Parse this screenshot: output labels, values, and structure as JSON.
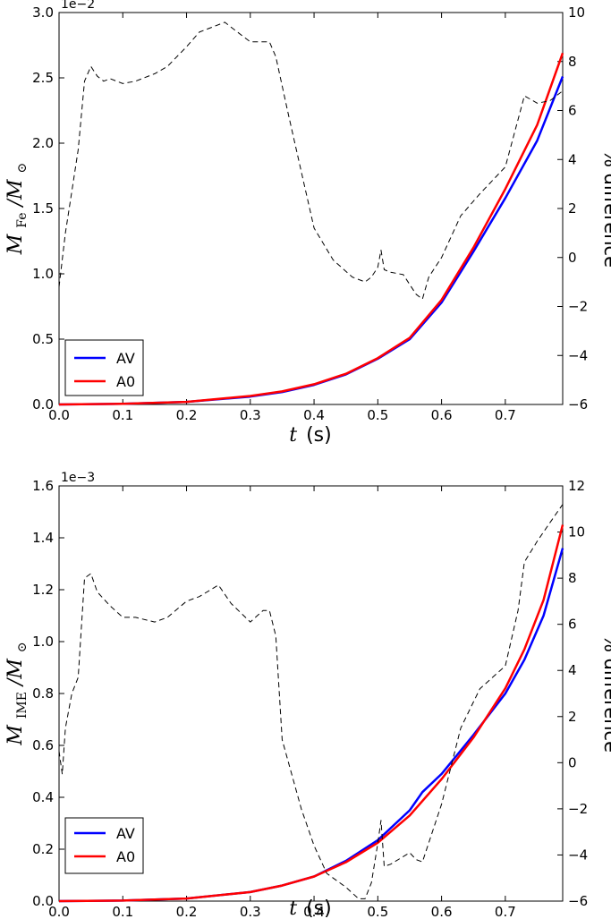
{
  "chart_data": [
    {
      "type": "line",
      "id": "top",
      "xlabel_var": "t",
      "xlabel_unit": "(s)",
      "ylabel_main": "M",
      "ylabel_sub": "Fe",
      "ylabel_tail": "/M",
      "ylabel_sun": "⊙",
      "ylabel_right": "% difference",
      "exponent_label": "1e−2",
      "xlim": [
        0.0,
        0.79
      ],
      "ylim": [
        0.0,
        3.0
      ],
      "ylim_right": [
        -6,
        10
      ],
      "x_ticks": [
        0.0,
        0.1,
        0.2,
        0.3,
        0.4,
        0.5,
        0.6,
        0.7
      ],
      "x_tick_labels": [
        "0.0",
        "0.1",
        "0.2",
        "0.3",
        "0.4",
        "0.5",
        "0.6",
        "0.7"
      ],
      "y_ticks": [
        0.0,
        0.5,
        1.0,
        1.5,
        2.0,
        2.5,
        3.0
      ],
      "y_tick_labels": [
        "0.0",
        "0.5",
        "1.0",
        "1.5",
        "2.0",
        "2.5",
        "3.0"
      ],
      "y_right_ticks": [
        -6,
        -4,
        -2,
        0,
        2,
        4,
        6,
        8,
        10
      ],
      "y_right_tick_labels": [
        "−6",
        "−4",
        "−2",
        "0",
        "2",
        "4",
        "6",
        "8",
        "10"
      ],
      "legend": {
        "placement": "lower-left",
        "entries": [
          "AV",
          "A0"
        ]
      },
      "series": [
        {
          "name": "AV",
          "color": "#0000ff",
          "axis": "left",
          "x": [
            0.0,
            0.1,
            0.2,
            0.3,
            0.35,
            0.4,
            0.45,
            0.5,
            0.55,
            0.6,
            0.65,
            0.7,
            0.75,
            0.79
          ],
          "y": [
            0.0,
            0.005,
            0.02,
            0.06,
            0.095,
            0.15,
            0.23,
            0.35,
            0.5,
            0.78,
            1.17,
            1.58,
            2.02,
            2.51
          ]
        },
        {
          "name": "A0",
          "color": "#ff0000",
          "axis": "left",
          "x": [
            0.0,
            0.1,
            0.2,
            0.3,
            0.35,
            0.4,
            0.45,
            0.5,
            0.55,
            0.6,
            0.65,
            0.7,
            0.75,
            0.79
          ],
          "y": [
            0.0,
            0.005,
            0.02,
            0.065,
            0.1,
            0.155,
            0.235,
            0.355,
            0.51,
            0.8,
            1.2,
            1.65,
            2.14,
            2.69
          ]
        },
        {
          "name": "% difference",
          "color": "#000000",
          "axis": "right",
          "dashed": true,
          "x": [
            0.0,
            0.01,
            0.02,
            0.03,
            0.04,
            0.05,
            0.06,
            0.07,
            0.08,
            0.1,
            0.12,
            0.15,
            0.17,
            0.2,
            0.22,
            0.24,
            0.26,
            0.28,
            0.3,
            0.33,
            0.34,
            0.36,
            0.38,
            0.4,
            0.43,
            0.46,
            0.48,
            0.49,
            0.5,
            0.505,
            0.51,
            0.52,
            0.54,
            0.56,
            0.57,
            0.58,
            0.6,
            0.63,
            0.66,
            0.7,
            0.73,
            0.75,
            0.77,
            0.79
          ],
          "y": [
            -1.2,
            1.0,
            2.7,
            4.4,
            7.2,
            7.8,
            7.4,
            7.2,
            7.3,
            7.1,
            7.2,
            7.5,
            7.8,
            8.6,
            9.2,
            9.4,
            9.6,
            9.2,
            8.8,
            8.8,
            8.2,
            5.8,
            3.5,
            1.2,
            -0.1,
            -0.8,
            -1.0,
            -0.8,
            -0.4,
            0.3,
            -0.5,
            -0.6,
            -0.7,
            -1.5,
            -1.7,
            -0.8,
            0.0,
            1.7,
            2.6,
            3.7,
            6.6,
            6.3,
            6.4,
            6.8
          ]
        }
      ]
    },
    {
      "type": "line",
      "id": "bottom",
      "xlabel_var": "t",
      "xlabel_unit": "(s)",
      "ylabel_main": "M",
      "ylabel_sub": "IME",
      "ylabel_tail": "/M",
      "ylabel_sun": "⊙",
      "ylabel_right": "% difference",
      "exponent_label": "1e−3",
      "xlim": [
        0.0,
        0.79
      ],
      "ylim": [
        0.0,
        1.6
      ],
      "ylim_right": [
        -6,
        12
      ],
      "x_ticks": [
        0.0,
        0.1,
        0.2,
        0.3,
        0.4,
        0.5,
        0.6,
        0.7
      ],
      "x_tick_labels": [
        "0.0",
        "0.1",
        "0.2",
        "0.3",
        "0.4",
        "0.5",
        "0.6",
        "0.7"
      ],
      "y_ticks": [
        0.0,
        0.2,
        0.4,
        0.6,
        0.8,
        1.0,
        1.2,
        1.4,
        1.6
      ],
      "y_tick_labels": [
        "0.0",
        "0.2",
        "0.4",
        "0.6",
        "0.8",
        "1.0",
        "1.2",
        "1.4",
        "1.6"
      ],
      "y_right_ticks": [
        -6,
        -4,
        -2,
        0,
        2,
        4,
        6,
        8,
        10,
        12
      ],
      "y_right_tick_labels": [
        "−6",
        "−4",
        "−2",
        "0",
        "2",
        "4",
        "6",
        "8",
        "10",
        "12"
      ],
      "legend": {
        "placement": "lower-left",
        "entries": [
          "AV",
          "A0"
        ]
      },
      "series": [
        {
          "name": "AV",
          "color": "#0000ff",
          "axis": "left",
          "x": [
            0.0,
            0.1,
            0.2,
            0.3,
            0.35,
            0.4,
            0.45,
            0.5,
            0.55,
            0.57,
            0.6,
            0.65,
            0.7,
            0.73,
            0.76,
            0.79
          ],
          "y": [
            0.0,
            0.002,
            0.01,
            0.035,
            0.06,
            0.095,
            0.155,
            0.235,
            0.35,
            0.42,
            0.49,
            0.64,
            0.8,
            0.93,
            1.1,
            1.36
          ]
        },
        {
          "name": "A0",
          "color": "#ff0000",
          "axis": "left",
          "x": [
            0.0,
            0.1,
            0.2,
            0.3,
            0.35,
            0.4,
            0.45,
            0.5,
            0.55,
            0.6,
            0.65,
            0.7,
            0.73,
            0.76,
            0.79
          ],
          "y": [
            0.0,
            0.002,
            0.01,
            0.035,
            0.06,
            0.095,
            0.15,
            0.225,
            0.33,
            0.47,
            0.63,
            0.82,
            0.97,
            1.16,
            1.45
          ]
        },
        {
          "name": "% difference",
          "color": "#000000",
          "axis": "right",
          "dashed": true,
          "x": [
            0.0,
            0.005,
            0.01,
            0.02,
            0.03,
            0.04,
            0.05,
            0.06,
            0.08,
            0.1,
            0.12,
            0.15,
            0.17,
            0.2,
            0.22,
            0.25,
            0.27,
            0.3,
            0.32,
            0.33,
            0.34,
            0.35,
            0.38,
            0.4,
            0.42,
            0.45,
            0.47,
            0.48,
            0.49,
            0.5,
            0.505,
            0.51,
            0.52,
            0.55,
            0.56,
            0.57,
            0.6,
            0.63,
            0.66,
            0.7,
            0.72,
            0.73,
            0.75,
            0.77,
            0.79
          ],
          "y": [
            0.5,
            -0.5,
            1.5,
            3.0,
            3.7,
            8.0,
            8.2,
            7.4,
            6.8,
            6.3,
            6.3,
            6.1,
            6.3,
            7.0,
            7.2,
            7.7,
            6.9,
            6.1,
            6.6,
            6.6,
            5.5,
            1.0,
            -2.0,
            -3.6,
            -4.8,
            -5.4,
            -5.9,
            -5.9,
            -5.2,
            -3.5,
            -2.5,
            -4.5,
            -4.4,
            -3.9,
            -4.2,
            -4.3,
            -1.8,
            1.5,
            3.2,
            4.2,
            6.6,
            8.7,
            9.6,
            10.4,
            11.2
          ]
        }
      ]
    }
  ]
}
